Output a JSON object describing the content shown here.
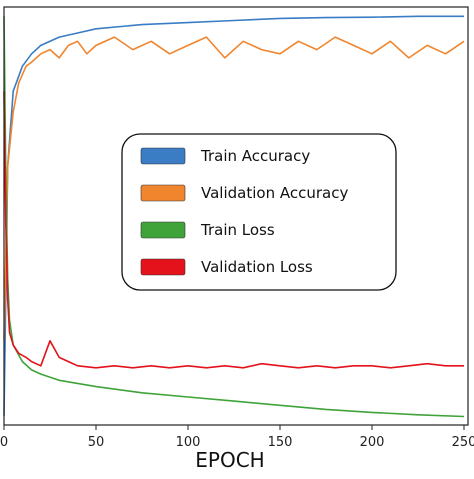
{
  "chart_data": {
    "type": "line",
    "xlabel": "EPOCH",
    "xlim": [
      0,
      250
    ],
    "ylim": [
      0,
      1
    ],
    "x_ticks": [
      0,
      50,
      100,
      150,
      200,
      250
    ],
    "x_tick_labels": [
      "0",
      "50",
      "100",
      "150",
      "200",
      "250"
    ],
    "grid": false,
    "legend_position": "center-right",
    "series": [
      {
        "name": "Train Accuracy",
        "color": "#3a7dc4",
        "x": [
          0,
          2,
          5,
          10,
          15,
          20,
          30,
          40,
          50,
          75,
          100,
          125,
          150,
          175,
          200,
          225,
          250
        ],
        "values": [
          0.02,
          0.62,
          0.8,
          0.86,
          0.89,
          0.91,
          0.93,
          0.94,
          0.95,
          0.96,
          0.965,
          0.97,
          0.975,
          0.977,
          0.978,
          0.98,
          0.98
        ]
      },
      {
        "name": "Validation Accuracy",
        "color": "#f0852d",
        "x": [
          0,
          2,
          5,
          8,
          12,
          15,
          20,
          25,
          30,
          35,
          40,
          45,
          50,
          60,
          70,
          80,
          90,
          100,
          110,
          120,
          130,
          140,
          150,
          160,
          170,
          180,
          190,
          200,
          210,
          220,
          230,
          240,
          250
        ],
        "values": [
          0.2,
          0.62,
          0.75,
          0.82,
          0.86,
          0.87,
          0.89,
          0.9,
          0.88,
          0.91,
          0.92,
          0.89,
          0.91,
          0.93,
          0.9,
          0.92,
          0.89,
          0.91,
          0.93,
          0.88,
          0.92,
          0.9,
          0.89,
          0.92,
          0.9,
          0.93,
          0.91,
          0.89,
          0.92,
          0.88,
          0.91,
          0.89,
          0.92
        ]
      },
      {
        "name": "Train Loss",
        "color": "#3fa33a",
        "x": [
          0,
          1,
          2,
          3,
          5,
          10,
          15,
          20,
          30,
          50,
          75,
          100,
          125,
          150,
          175,
          200,
          225,
          250
        ],
        "values": [
          0.98,
          0.6,
          0.35,
          0.25,
          0.19,
          0.15,
          0.13,
          0.12,
          0.105,
          0.09,
          0.075,
          0.065,
          0.055,
          0.045,
          0.035,
          0.028,
          0.022,
          0.018
        ]
      },
      {
        "name": "Validation Loss",
        "color": "#e3121b",
        "x": [
          0,
          1,
          2,
          3,
          5,
          8,
          12,
          15,
          20,
          25,
          30,
          35,
          40,
          50,
          60,
          70,
          80,
          90,
          100,
          110,
          120,
          130,
          140,
          150,
          160,
          170,
          180,
          190,
          200,
          210,
          220,
          230,
          240,
          250
        ],
        "values": [
          0.8,
          0.48,
          0.3,
          0.22,
          0.19,
          0.17,
          0.16,
          0.15,
          0.14,
          0.2,
          0.16,
          0.15,
          0.14,
          0.135,
          0.14,
          0.135,
          0.14,
          0.135,
          0.14,
          0.135,
          0.14,
          0.135,
          0.145,
          0.14,
          0.135,
          0.14,
          0.135,
          0.14,
          0.14,
          0.135,
          0.14,
          0.145,
          0.14,
          0.14
        ]
      }
    ]
  }
}
